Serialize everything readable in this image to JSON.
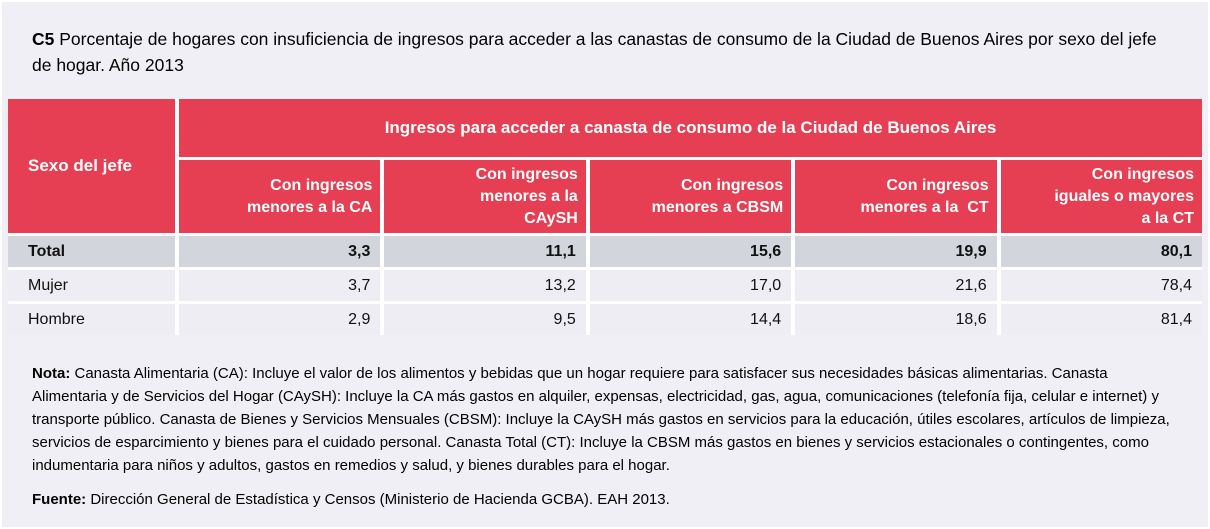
{
  "title": {
    "code": "C5",
    "text": " Porcentaje de hogares con insuficiencia de ingresos para acceder a las canastas de consumo de la Ciudad de Buenos Aires por sexo del jefe de hogar. Año 2013"
  },
  "table": {
    "corner_header": "Sexo del jefe",
    "group_header": "Ingresos para acceder a canasta de consumo de la Ciudad de Buenos Aires",
    "columns": [
      "Con ingresos\nmenores a la CA",
      "Con ingresos\nmenores a la\nCAySH",
      "Con ingresos\nmenores a CBSM",
      "Con ingresos\nmenores a la  CT",
      "Con ingresos\niguales o mayores\na la CT"
    ],
    "rows": [
      {
        "label": "Total",
        "values": [
          "3,3",
          "11,1",
          "15,6",
          "19,9",
          "80,1"
        ]
      },
      {
        "label": "Mujer",
        "values": [
          "3,7",
          "13,2",
          "17,0",
          "21,6",
          "78,4"
        ]
      },
      {
        "label": "Hombre",
        "values": [
          "2,9",
          "9,5",
          "14,4",
          "18,6",
          "81,4"
        ]
      }
    ]
  },
  "notes": {
    "nota_label": "Nota:",
    "nota_text": " Canasta Alimentaria (CA): Incluye el valor de los alimentos y bebidas que un hogar requiere para satisfacer sus necesidades básicas alimentarias. Canasta Alimentaria y de Servicios del Hogar (CAySH): Incluye la CA más gastos en alquiler, expensas, electricidad, gas, agua, comunicaciones (telefonía fija, celular e internet) y transporte público. Canasta de Bienes y Servicios Mensuales (CBSM): Incluye la CAySH más gastos en servicios para la educación, útiles escolares, artículos de limpieza, servicios de esparcimiento y bienes para el cuidado personal. Canasta Total (CT): Incluye la CBSM más gastos en bienes y servicios estacionales o contingentes, como indumentaria para niños y adultos, gastos en remedios y salud, y bienes durables para el hogar.",
    "fuente_label": "Fuente:",
    "fuente_text": " Dirección General de Estadística y Censos (Ministerio de Hacienda GCBA). EAH 2013."
  },
  "colors": {
    "header_red": "#e63e52",
    "row_total_bg": "#d3d5dd",
    "row_bg": "#eeedf4",
    "page_bg": "#f0eff5",
    "header_text": "#ffffff"
  },
  "chart_data": {
    "type": "table",
    "title": "C5 Porcentaje de hogares con insuficiencia de ingresos para acceder a las canastas de consumo de la Ciudad de Buenos Aires por sexo del jefe de hogar. Año 2013",
    "row_header": "Sexo del jefe",
    "column_group": "Ingresos para acceder a canasta de consumo de la Ciudad de Buenos Aires",
    "categories": [
      "Con ingresos menores a la CA",
      "Con ingresos menores a la CAySH",
      "Con ingresos menores a CBSM",
      "Con ingresos menores a la CT",
      "Con ingresos iguales o mayores a la CT"
    ],
    "series": [
      {
        "name": "Total",
        "values": [
          3.3,
          11.1,
          15.6,
          19.9,
          80.1
        ]
      },
      {
        "name": "Mujer",
        "values": [
          3.7,
          13.2,
          17.0,
          21.6,
          78.4
        ]
      },
      {
        "name": "Hombre",
        "values": [
          2.9,
          9.5,
          14.4,
          18.6,
          81.4
        ]
      }
    ]
  }
}
